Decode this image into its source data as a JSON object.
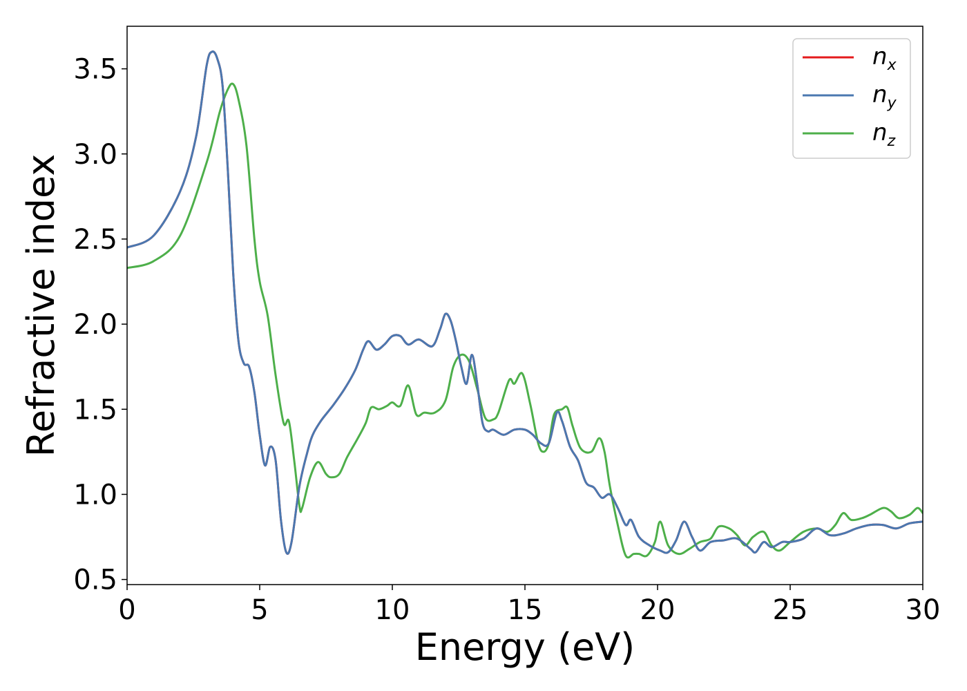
{
  "chart_data": {
    "type": "line",
    "xlabel": "Energy (eV)",
    "ylabel": "Refractive index",
    "xlim": [
      0,
      30
    ],
    "ylim": [
      0.47,
      3.75
    ],
    "xticks": [
      0,
      5,
      10,
      15,
      20,
      25,
      30
    ],
    "xtick_labels": [
      "0",
      "5",
      "10",
      "15",
      "20",
      "25",
      "30"
    ],
    "yticks": [
      0.5,
      1.0,
      1.5,
      2.0,
      2.5,
      3.0,
      3.5
    ],
    "ytick_labels": [
      "0.5",
      "1.0",
      "1.5",
      "2.0",
      "2.5",
      "3.0",
      "3.5"
    ],
    "grid": false,
    "legend_position": "top-right",
    "series": [
      {
        "name": "n",
        "subscript": "x",
        "color": "#e41a1c",
        "points": [
          [
            0,
            2.45
          ],
          [
            1,
            2.52
          ],
          [
            2,
            2.78
          ],
          [
            2.6,
            3.1
          ],
          [
            3.0,
            3.52
          ],
          [
            3.2,
            3.6
          ],
          [
            3.4,
            3.56
          ],
          [
            3.6,
            3.4
          ],
          [
            3.8,
            2.9
          ],
          [
            4.0,
            2.3
          ],
          [
            4.2,
            1.9
          ],
          [
            4.4,
            1.77
          ],
          [
            4.6,
            1.75
          ],
          [
            4.8,
            1.6
          ],
          [
            5.0,
            1.35
          ],
          [
            5.2,
            1.17
          ],
          [
            5.4,
            1.28
          ],
          [
            5.6,
            1.2
          ],
          [
            5.8,
            0.85
          ],
          [
            6.0,
            0.66
          ],
          [
            6.2,
            0.72
          ],
          [
            6.5,
            1.05
          ],
          [
            6.8,
            1.25
          ],
          [
            7.0,
            1.35
          ],
          [
            7.3,
            1.43
          ],
          [
            7.6,
            1.49
          ],
          [
            7.8,
            1.53
          ],
          [
            8.2,
            1.62
          ],
          [
            8.6,
            1.73
          ],
          [
            8.9,
            1.85
          ],
          [
            9.1,
            1.9
          ],
          [
            9.4,
            1.85
          ],
          [
            9.7,
            1.88
          ],
          [
            10.0,
            1.93
          ],
          [
            10.3,
            1.93
          ],
          [
            10.6,
            1.88
          ],
          [
            11.0,
            1.91
          ],
          [
            11.5,
            1.87
          ],
          [
            11.8,
            1.97
          ],
          [
            12.0,
            2.06
          ],
          [
            12.2,
            2.02
          ],
          [
            12.4,
            1.9
          ],
          [
            12.6,
            1.75
          ],
          [
            12.8,
            1.65
          ],
          [
            13.0,
            1.82
          ],
          [
            13.2,
            1.65
          ],
          [
            13.4,
            1.42
          ],
          [
            13.6,
            1.37
          ],
          [
            13.8,
            1.38
          ],
          [
            14.2,
            1.35
          ],
          [
            14.6,
            1.38
          ],
          [
            15.0,
            1.38
          ],
          [
            15.3,
            1.35
          ],
          [
            15.6,
            1.3
          ],
          [
            15.9,
            1.3
          ],
          [
            16.2,
            1.48
          ],
          [
            16.4,
            1.43
          ],
          [
            16.7,
            1.28
          ],
          [
            17.0,
            1.2
          ],
          [
            17.3,
            1.07
          ],
          [
            17.6,
            1.04
          ],
          [
            17.9,
            0.98
          ],
          [
            18.2,
            1.0
          ],
          [
            18.5,
            0.92
          ],
          [
            18.8,
            0.82
          ],
          [
            19.0,
            0.85
          ],
          [
            19.3,
            0.75
          ],
          [
            19.7,
            0.7
          ],
          [
            20.1,
            0.67
          ],
          [
            20.4,
            0.66
          ],
          [
            20.7,
            0.73
          ],
          [
            21.0,
            0.84
          ],
          [
            21.3,
            0.75
          ],
          [
            21.6,
            0.67
          ],
          [
            22.0,
            0.72
          ],
          [
            22.5,
            0.73
          ],
          [
            23.0,
            0.74
          ],
          [
            23.5,
            0.68
          ],
          [
            23.7,
            0.66
          ],
          [
            24.0,
            0.72
          ],
          [
            24.3,
            0.69
          ],
          [
            24.7,
            0.72
          ],
          [
            25.0,
            0.72
          ],
          [
            25.5,
            0.74
          ],
          [
            26.0,
            0.8
          ],
          [
            26.5,
            0.76
          ],
          [
            27.0,
            0.77
          ],
          [
            27.5,
            0.8
          ],
          [
            28.0,
            0.82
          ],
          [
            28.5,
            0.82
          ],
          [
            29.0,
            0.8
          ],
          [
            29.5,
            0.83
          ],
          [
            30.0,
            0.84
          ]
        ]
      },
      {
        "name": "n",
        "subscript": "y",
        "color": "#4a78b0",
        "points": [
          [
            0,
            2.45
          ],
          [
            1,
            2.52
          ],
          [
            2,
            2.78
          ],
          [
            2.6,
            3.1
          ],
          [
            3.0,
            3.52
          ],
          [
            3.2,
            3.6
          ],
          [
            3.4,
            3.56
          ],
          [
            3.6,
            3.4
          ],
          [
            3.8,
            2.9
          ],
          [
            4.0,
            2.3
          ],
          [
            4.2,
            1.9
          ],
          [
            4.4,
            1.77
          ],
          [
            4.6,
            1.75
          ],
          [
            4.8,
            1.6
          ],
          [
            5.0,
            1.35
          ],
          [
            5.2,
            1.17
          ],
          [
            5.4,
            1.28
          ],
          [
            5.6,
            1.2
          ],
          [
            5.8,
            0.85
          ],
          [
            6.0,
            0.66
          ],
          [
            6.2,
            0.72
          ],
          [
            6.5,
            1.05
          ],
          [
            6.8,
            1.25
          ],
          [
            7.0,
            1.35
          ],
          [
            7.3,
            1.43
          ],
          [
            7.6,
            1.49
          ],
          [
            7.8,
            1.53
          ],
          [
            8.2,
            1.62
          ],
          [
            8.6,
            1.73
          ],
          [
            8.9,
            1.85
          ],
          [
            9.1,
            1.9
          ],
          [
            9.4,
            1.85
          ],
          [
            9.7,
            1.88
          ],
          [
            10.0,
            1.93
          ],
          [
            10.3,
            1.93
          ],
          [
            10.6,
            1.88
          ],
          [
            11.0,
            1.91
          ],
          [
            11.5,
            1.87
          ],
          [
            11.8,
            1.97
          ],
          [
            12.0,
            2.06
          ],
          [
            12.2,
            2.02
          ],
          [
            12.4,
            1.9
          ],
          [
            12.6,
            1.75
          ],
          [
            12.8,
            1.65
          ],
          [
            13.0,
            1.82
          ],
          [
            13.2,
            1.65
          ],
          [
            13.4,
            1.42
          ],
          [
            13.6,
            1.37
          ],
          [
            13.8,
            1.38
          ],
          [
            14.2,
            1.35
          ],
          [
            14.6,
            1.38
          ],
          [
            15.0,
            1.38
          ],
          [
            15.3,
            1.35
          ],
          [
            15.6,
            1.3
          ],
          [
            15.9,
            1.3
          ],
          [
            16.2,
            1.48
          ],
          [
            16.4,
            1.43
          ],
          [
            16.7,
            1.28
          ],
          [
            17.0,
            1.2
          ],
          [
            17.3,
            1.07
          ],
          [
            17.6,
            1.04
          ],
          [
            17.9,
            0.98
          ],
          [
            18.2,
            1.0
          ],
          [
            18.5,
            0.92
          ],
          [
            18.8,
            0.82
          ],
          [
            19.0,
            0.85
          ],
          [
            19.3,
            0.75
          ],
          [
            19.7,
            0.7
          ],
          [
            20.1,
            0.67
          ],
          [
            20.4,
            0.66
          ],
          [
            20.7,
            0.73
          ],
          [
            21.0,
            0.84
          ],
          [
            21.3,
            0.75
          ],
          [
            21.6,
            0.67
          ],
          [
            22.0,
            0.72
          ],
          [
            22.5,
            0.73
          ],
          [
            23.0,
            0.74
          ],
          [
            23.5,
            0.68
          ],
          [
            23.7,
            0.66
          ],
          [
            24.0,
            0.72
          ],
          [
            24.3,
            0.69
          ],
          [
            24.7,
            0.72
          ],
          [
            25.0,
            0.72
          ],
          [
            25.5,
            0.74
          ],
          [
            26.0,
            0.8
          ],
          [
            26.5,
            0.76
          ],
          [
            27.0,
            0.77
          ],
          [
            27.5,
            0.8
          ],
          [
            28.0,
            0.82
          ],
          [
            28.5,
            0.82
          ],
          [
            29.0,
            0.8
          ],
          [
            29.5,
            0.83
          ],
          [
            30.0,
            0.84
          ]
        ]
      },
      {
        "name": "n",
        "subscript": "z",
        "color": "#4daf4a",
        "points": [
          [
            0,
            2.33
          ],
          [
            1,
            2.37
          ],
          [
            2,
            2.52
          ],
          [
            3,
            2.95
          ],
          [
            3.5,
            3.25
          ],
          [
            3.8,
            3.38
          ],
          [
            4.0,
            3.41
          ],
          [
            4.2,
            3.32
          ],
          [
            4.5,
            3.05
          ],
          [
            4.8,
            2.5
          ],
          [
            5.0,
            2.25
          ],
          [
            5.3,
            2.05
          ],
          [
            5.6,
            1.7
          ],
          [
            5.9,
            1.42
          ],
          [
            6.1,
            1.43
          ],
          [
            6.3,
            1.2
          ],
          [
            6.5,
            0.93
          ],
          [
            6.6,
            0.92
          ],
          [
            6.9,
            1.1
          ],
          [
            7.2,
            1.19
          ],
          [
            7.5,
            1.12
          ],
          [
            7.7,
            1.1
          ],
          [
            8.0,
            1.12
          ],
          [
            8.3,
            1.22
          ],
          [
            8.7,
            1.33
          ],
          [
            9.0,
            1.42
          ],
          [
            9.2,
            1.51
          ],
          [
            9.5,
            1.5
          ],
          [
            9.8,
            1.52
          ],
          [
            10.0,
            1.54
          ],
          [
            10.3,
            1.52
          ],
          [
            10.6,
            1.64
          ],
          [
            10.9,
            1.47
          ],
          [
            11.2,
            1.48
          ],
          [
            11.6,
            1.48
          ],
          [
            12.0,
            1.55
          ],
          [
            12.3,
            1.75
          ],
          [
            12.6,
            1.82
          ],
          [
            12.9,
            1.78
          ],
          [
            13.2,
            1.62
          ],
          [
            13.5,
            1.45
          ],
          [
            13.8,
            1.44
          ],
          [
            14.0,
            1.48
          ],
          [
            14.4,
            1.67
          ],
          [
            14.6,
            1.65
          ],
          [
            14.9,
            1.71
          ],
          [
            15.2,
            1.53
          ],
          [
            15.5,
            1.3
          ],
          [
            15.7,
            1.25
          ],
          [
            15.9,
            1.3
          ],
          [
            16.1,
            1.47
          ],
          [
            16.4,
            1.5
          ],
          [
            16.6,
            1.51
          ],
          [
            16.8,
            1.4
          ],
          [
            17.1,
            1.27
          ],
          [
            17.5,
            1.25
          ],
          [
            17.8,
            1.33
          ],
          [
            18.0,
            1.25
          ],
          [
            18.2,
            1.05
          ],
          [
            18.5,
            0.82
          ],
          [
            18.8,
            0.64
          ],
          [
            19.1,
            0.65
          ],
          [
            19.3,
            0.65
          ],
          [
            19.6,
            0.64
          ],
          [
            19.9,
            0.72
          ],
          [
            20.1,
            0.84
          ],
          [
            20.4,
            0.7
          ],
          [
            20.8,
            0.65
          ],
          [
            21.2,
            0.68
          ],
          [
            21.6,
            0.72
          ],
          [
            22.0,
            0.74
          ],
          [
            22.3,
            0.81
          ],
          [
            22.7,
            0.8
          ],
          [
            23.0,
            0.76
          ],
          [
            23.3,
            0.7
          ],
          [
            23.6,
            0.75
          ],
          [
            24.0,
            0.78
          ],
          [
            24.3,
            0.7
          ],
          [
            24.6,
            0.67
          ],
          [
            25.0,
            0.72
          ],
          [
            25.5,
            0.78
          ],
          [
            26.0,
            0.8
          ],
          [
            26.4,
            0.78
          ],
          [
            26.7,
            0.82
          ],
          [
            27.0,
            0.89
          ],
          [
            27.3,
            0.85
          ],
          [
            27.7,
            0.86
          ],
          [
            28.0,
            0.88
          ],
          [
            28.5,
            0.92
          ],
          [
            28.8,
            0.9
          ],
          [
            29.1,
            0.86
          ],
          [
            29.5,
            0.88
          ],
          [
            29.8,
            0.92
          ],
          [
            30.0,
            0.89
          ]
        ]
      }
    ]
  }
}
